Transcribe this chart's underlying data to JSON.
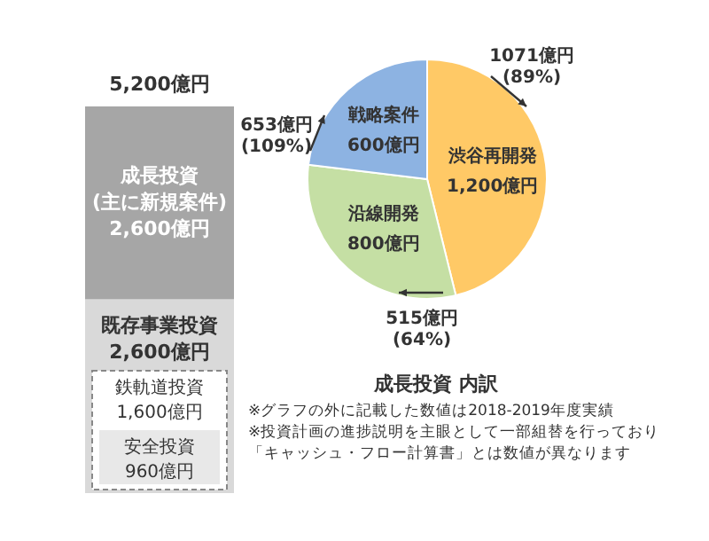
{
  "chart_data": [
    {
      "type": "bar",
      "stacked": true,
      "categories": [
        null
      ],
      "legend": false,
      "series": [
        {
          "name": "既存事業投資",
          "color": "#d9d9d9",
          "values": [
            2600
          ],
          "value_labels": [
            "2,600億円"
          ]
        },
        {
          "name": "成長投資\n(主に新規案件)",
          "color": "#a6a6a6",
          "values": [
            2600
          ],
          "value_labels": [
            "2,600億円"
          ]
        }
      ],
      "totals": [
        "5,200億円"
      ],
      "annotations": [
        "鉄軌道投資\n1,600億円",
        "安全投資\n960億円"
      ]
    },
    {
      "type": "pie",
      "title": "成長投資 内訳",
      "legend": false,
      "categories": [
        "渋谷再開発",
        "沿線開発",
        "戦略案件"
      ],
      "values": [
        1200,
        800,
        600
      ],
      "value_labels": [
        "1,200億円",
        "800億円",
        "600億円"
      ],
      "colors": [
        "#ffc966",
        "#c5dfa4",
        "#8db3e2"
      ],
      "annotations": [
        "1071億円\n(89%)",
        "515億円\n(64%)",
        "653億円\n(109%)",
        "※グラフの外に記載した数値は2018-2019年度実績",
        "※投資計画の進捗説明を主眼として一部組替を行っており",
        "「キャッシュ・フロー計算書」とは数値が異なります"
      ]
    }
  ]
}
